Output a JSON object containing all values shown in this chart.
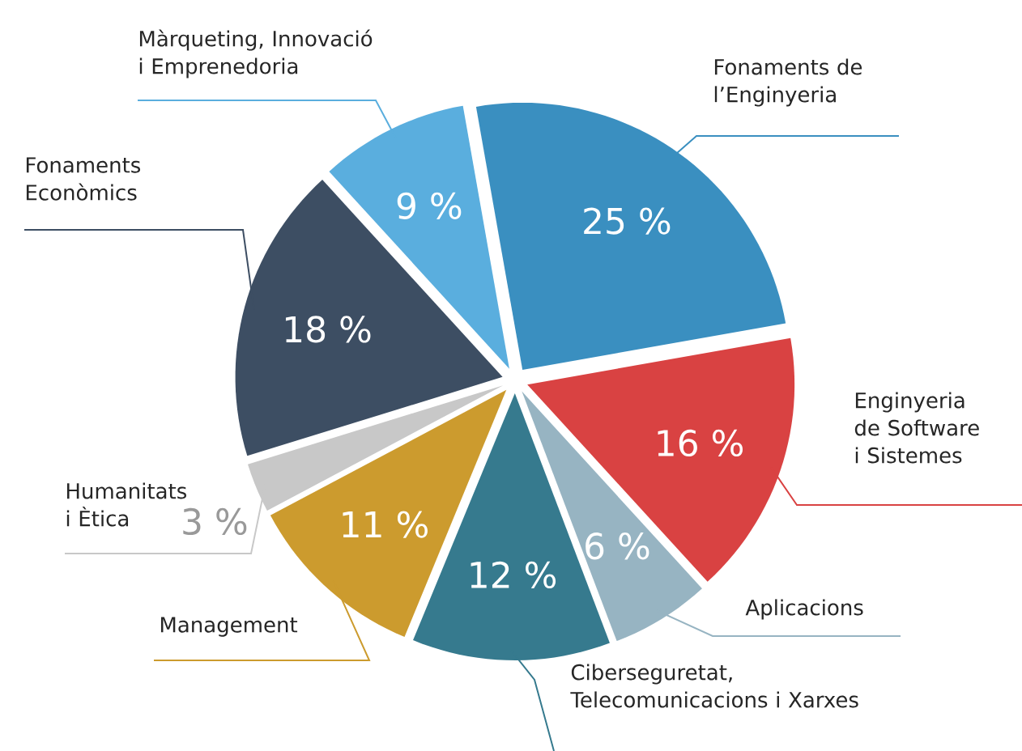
{
  "chart_data": {
    "type": "pie",
    "categories": [
      "Fonaments de l’Enginyeria",
      "Enginyeria de Software i Sistemes",
      "Aplicacions",
      "Ciberseguretat, Telecomunicacions i Xarxes",
      "Management",
      "Humanitats i Ètica",
      "Fonaments Econòmics",
      "Màrqueting, Innovació i Emprenedoria"
    ],
    "values": [
      25,
      16,
      6,
      12,
      11,
      3,
      18,
      9
    ],
    "value_labels": [
      "25 %",
      "16 %",
      "6 %",
      "12 %",
      "11 %",
      "3 %",
      "18 %",
      "9 %"
    ],
    "colors": [
      "#3a8fc0",
      "#d94242",
      "#97b4c2",
      "#367a8e",
      "#cc9b2e",
      "#c8c8c8",
      "#3d4e63",
      "#5aaede"
    ]
  }
}
